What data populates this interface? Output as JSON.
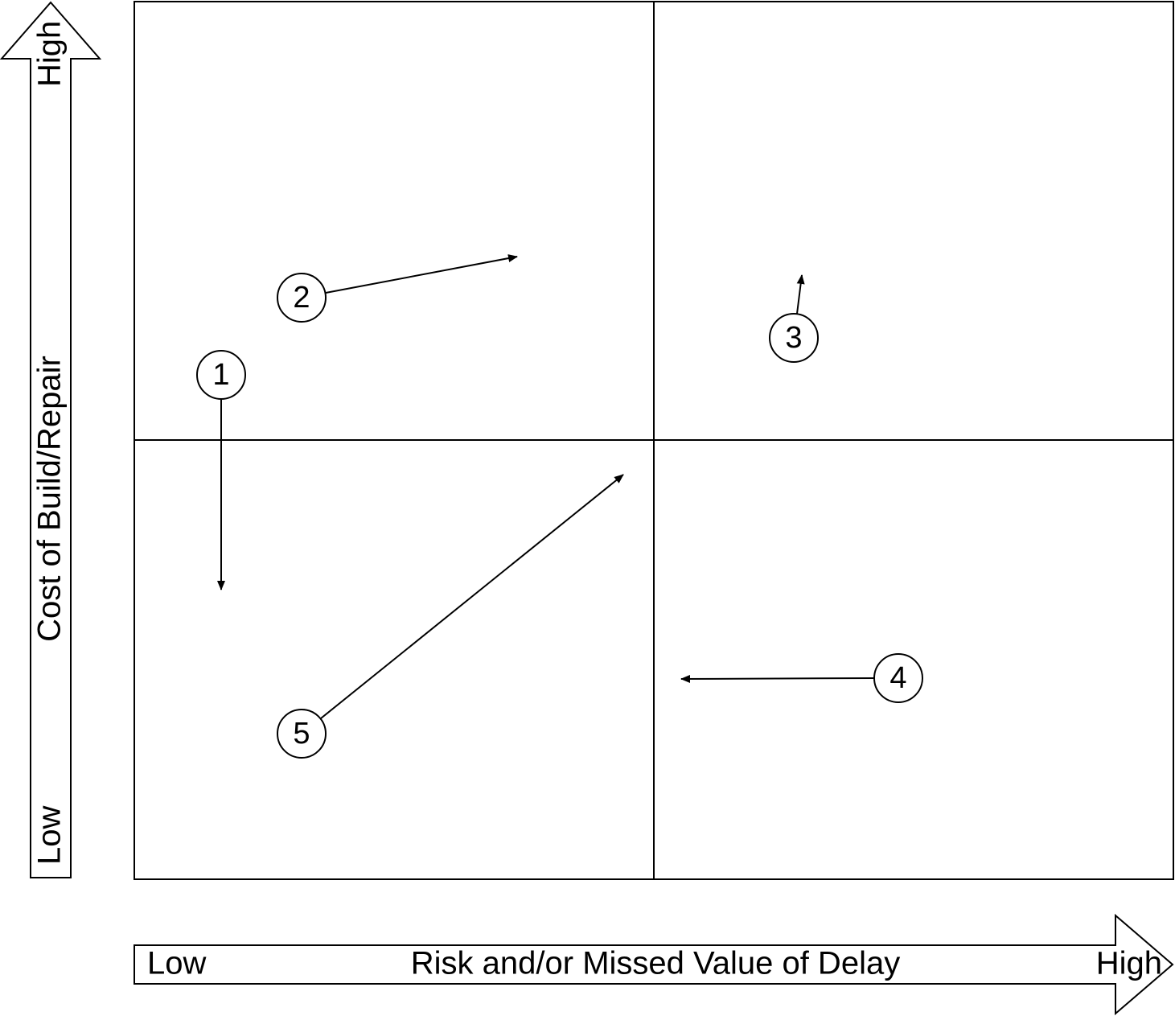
{
  "y_axis": {
    "label": "Cost of Build/Repair",
    "low": "Low",
    "high": "High"
  },
  "x_axis": {
    "label": "Risk and/or Missed Value of Delay",
    "low": "Low",
    "high": "High"
  },
  "nodes": [
    {
      "label": "1"
    },
    {
      "label": "2"
    },
    {
      "label": "3"
    },
    {
      "label": "4"
    },
    {
      "label": "5"
    }
  ]
}
